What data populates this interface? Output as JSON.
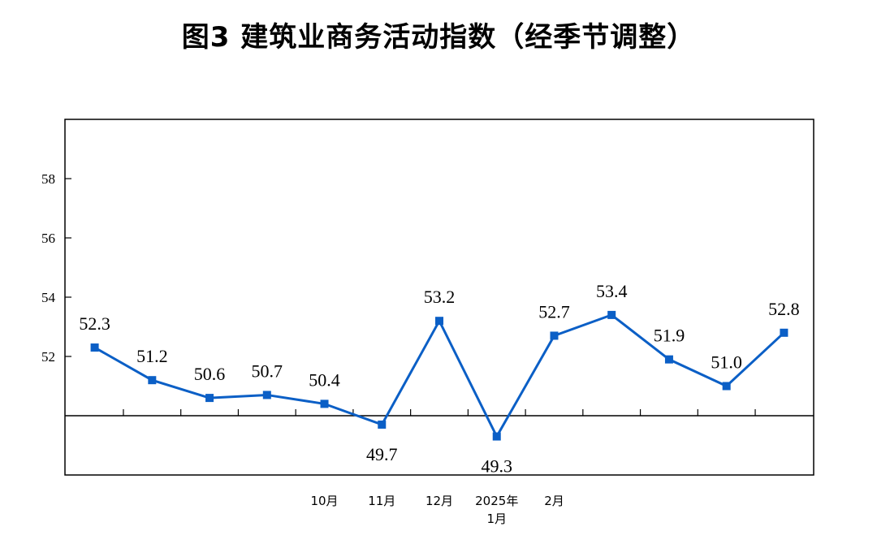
{
  "chart_data": {
    "type": "line",
    "title": "图3  建筑业商务活动指数（经季节调整）",
    "ylim": [
      48,
      60
    ],
    "yticks": [
      52,
      54,
      56,
      58
    ],
    "reference_line": 50,
    "grid": false,
    "series": [
      {
        "color": "#0b5fc6",
        "values": [
          52.3,
          51.2,
          50.6,
          50.7,
          50.4,
          49.7,
          53.2,
          49.3,
          52.7,
          53.4,
          51.9,
          51.0,
          52.8
        ],
        "labels": [
          "52.3",
          "51.2",
          "50.6",
          "50.7",
          "50.4",
          "49.7",
          "53.2",
          "49.3",
          "52.7",
          "53.4",
          "51.9",
          "51.0",
          "52.8"
        ]
      }
    ],
    "categories": [
      "",
      "",
      "",
      "",
      "10月",
      "11月",
      "12月",
      "2025年\n1月",
      "2月",
      "",
      "",
      "",
      ""
    ]
  }
}
